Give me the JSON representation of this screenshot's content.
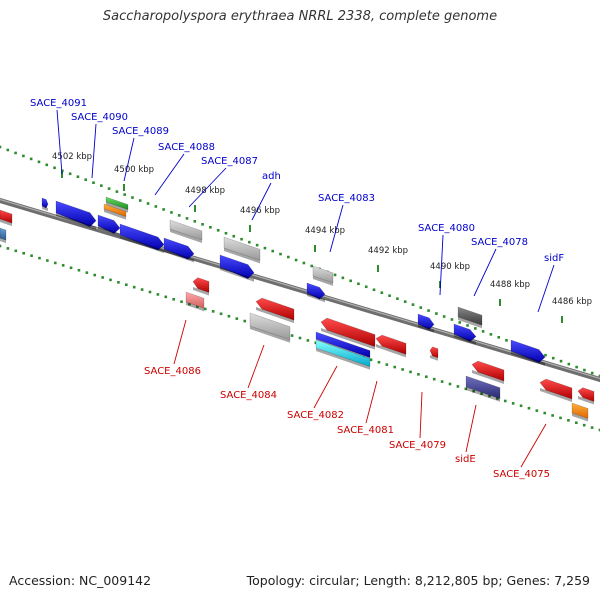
{
  "title": "Saccharopolyspora erythraea NRRL 2338, complete genome",
  "accession": "Accession: NC_009142",
  "summary": "Topology: circular; Length: 8,212,805 bp; Genes: 7,259",
  "colors": {
    "top_label": "#0000cc",
    "bottom_label": "#cc0000",
    "tick_dot": "#2e8b2e",
    "axis": "#7a7a7a",
    "gene_blue": "#1010e0",
    "gene_red": "#e01010",
    "gene_grey": "#b8b8b8",
    "gene_darkgrey": "#555555",
    "gene_green": "#33aa33",
    "gene_orange": "#ff8800",
    "gene_cyan": "#00cccc",
    "gene_pink": "#e87878",
    "gene_navy": "#3a3a90",
    "gene_steelblue": "#3a7ab8"
  },
  "kbp_ticks": [
    "4502 kbp",
    "4500 kbp",
    "4498 kbp",
    "4496 kbp",
    "4494 kbp",
    "4492 kbp",
    "4490 kbp",
    "4488 kbp",
    "4486 kbp"
  ],
  "top_genes": [
    {
      "label": "SACE_4091"
    },
    {
      "label": "SACE_4090"
    },
    {
      "label": "SACE_4089"
    },
    {
      "label": "SACE_4088"
    },
    {
      "label": "SACE_4087"
    },
    {
      "label": "adh"
    },
    {
      "label": "SACE_4083"
    },
    {
      "label": "SACE_4080"
    },
    {
      "label": "SACE_4078"
    },
    {
      "label": "sidF"
    }
  ],
  "bottom_genes": [
    {
      "label": "SACE_4086"
    },
    {
      "label": "SACE_4084"
    },
    {
      "label": "SACE_4082"
    },
    {
      "label": "SACE_4081"
    },
    {
      "label": "SACE_4079"
    },
    {
      "label": "sidE"
    },
    {
      "label": "SACE_4075"
    }
  ]
}
